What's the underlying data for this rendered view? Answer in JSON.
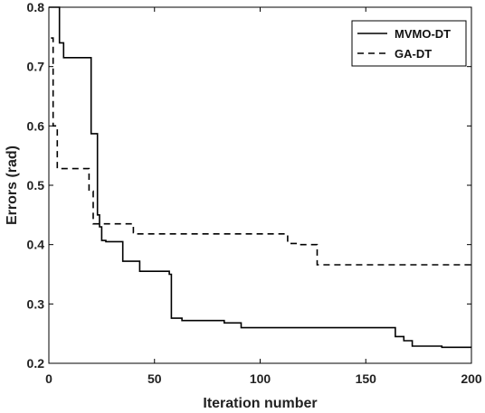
{
  "chart_data": {
    "type": "line",
    "title": "",
    "xlabel": "Iteration number",
    "ylabel": "Errors (rad)",
    "xlim": [
      0,
      200
    ],
    "ylim": [
      0.2,
      0.8
    ],
    "xticks": [
      0,
      50,
      100,
      150,
      200
    ],
    "yticks": [
      0.2,
      0.3,
      0.4,
      0.5,
      0.6,
      0.7,
      0.8
    ],
    "xtick_labels": [
      "0",
      "50",
      "100",
      "150",
      "200"
    ],
    "ytick_labels": [
      "0.2",
      "0.3",
      "0.4",
      "0.5",
      "0.6",
      "0.7",
      "0.8"
    ],
    "grid": false,
    "legend_position": "top-right",
    "series": [
      {
        "name": "MVMO-DT",
        "style": "solid",
        "color": "#000000",
        "x": [
          0,
          5,
          5,
          7,
          7,
          20,
          20,
          23,
          23,
          24,
          24,
          25,
          25,
          27,
          27,
          35,
          35,
          39,
          39,
          43,
          43,
          57,
          57,
          58,
          58,
          63,
          63,
          83,
          83,
          91,
          91,
          164,
          164,
          168,
          168,
          172,
          172,
          186,
          186,
          200
        ],
        "y": [
          0.8,
          0.8,
          0.74,
          0.74,
          0.715,
          0.715,
          0.587,
          0.587,
          0.45,
          0.45,
          0.43,
          0.43,
          0.407,
          0.407,
          0.405,
          0.405,
          0.372,
          0.372,
          0.372,
          0.372,
          0.355,
          0.355,
          0.35,
          0.35,
          0.276,
          0.276,
          0.272,
          0.272,
          0.268,
          0.268,
          0.26,
          0.26,
          0.245,
          0.245,
          0.238,
          0.238,
          0.229,
          0.229,
          0.227,
          0.227
        ]
      },
      {
        "name": "GA-DT",
        "style": "dashed",
        "color": "#000000",
        "x": [
          1,
          2,
          2,
          4,
          4,
          19,
          19,
          21,
          21,
          40,
          40,
          41,
          41,
          113,
          113,
          117,
          117,
          127,
          127,
          200
        ],
        "y": [
          0.748,
          0.748,
          0.6,
          0.6,
          0.528,
          0.528,
          0.49,
          0.49,
          0.435,
          0.435,
          0.42,
          0.42,
          0.418,
          0.418,
          0.402,
          0.402,
          0.4,
          0.4,
          0.366,
          0.366
        ]
      }
    ]
  }
}
